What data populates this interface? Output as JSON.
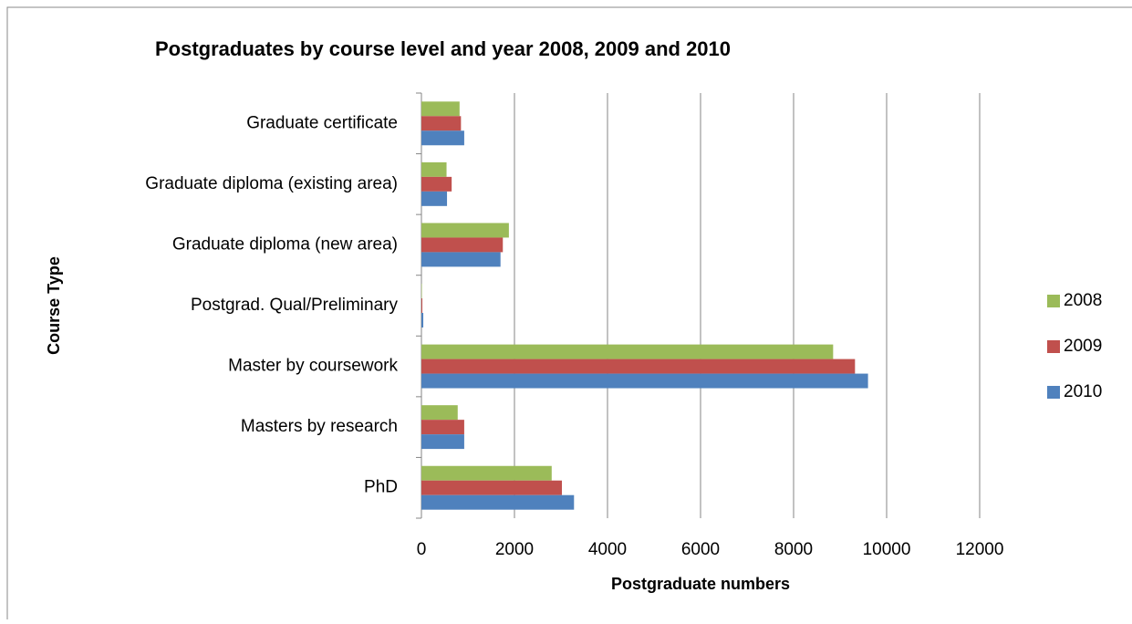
{
  "chart_data": {
    "type": "hbar",
    "title": "Postgraduates by course level and year 2008, 2009 and 2010",
    "x_label": "Postgraduate numbers",
    "y_label": "Course Type",
    "categories": [
      "Graduate certificate",
      "Graduate diploma (existing area)",
      "Graduate diploma (new area)",
      "Postgrad. Qual/Preliminary",
      "Master by coursework",
      "Masters by research",
      "PhD"
    ],
    "series": [
      {
        "name": "2008",
        "color": "#9bbb59",
        "values": [
          820,
          540,
          1880,
          10,
          8850,
          780,
          2800
        ]
      },
      {
        "name": "2009",
        "color": "#c0504d",
        "values": [
          850,
          650,
          1750,
          20,
          9320,
          920,
          3020
        ]
      },
      {
        "name": "2010",
        "color": "#4f81bd",
        "values": [
          920,
          550,
          1700,
          40,
          9600,
          920,
          3280
        ]
      }
    ],
    "xlim": [
      0,
      12000
    ],
    "xticks": [
      0,
      2000,
      4000,
      6000,
      8000,
      10000,
      12000
    ],
    "grid": true,
    "legend": "right"
  }
}
